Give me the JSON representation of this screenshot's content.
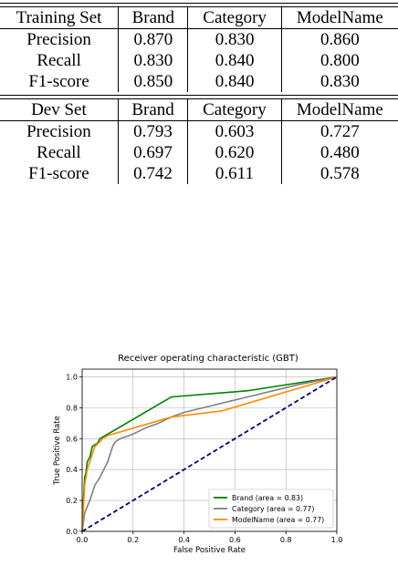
{
  "train_table": {
    "title": "Training Set",
    "columns": [
      "Brand",
      "Category",
      "ModelName"
    ],
    "rows": [
      {
        "label": "Precision",
        "values": [
          "0.870",
          "0.830",
          "0.860"
        ]
      },
      {
        "label": "Recall",
        "values": [
          "0.830",
          "0.840",
          "0.800"
        ]
      },
      {
        "label": "F1-score",
        "values": [
          "0.850",
          "0.840",
          "0.830"
        ]
      }
    ]
  },
  "dev_table": {
    "title": "Dev Set",
    "columns": [
      "Brand",
      "Category",
      "ModelName"
    ],
    "rows": [
      {
        "label": "Precision",
        "values": [
          "0.793",
          "0.603",
          "0.727"
        ]
      },
      {
        "label": "Recall",
        "values": [
          "0.697",
          "0.620",
          "0.480"
        ]
      },
      {
        "label": "F1-score",
        "values": [
          "0.742",
          "0.611",
          "0.578"
        ]
      }
    ]
  },
  "chart_data": {
    "type": "line",
    "title": "Receiver operating characteristic (GBT)",
    "xlabel": "False Positive Rate",
    "ylabel": "True Positive Rate",
    "xlim": [
      0.0,
      1.0
    ],
    "ylim": [
      0.0,
      1.05
    ],
    "xticks": [
      "0.0",
      "0.2",
      "0.4",
      "0.6",
      "0.8",
      "1.0"
    ],
    "yticks": [
      "0.0",
      "0.2",
      "0.4",
      "0.6",
      "0.8",
      "1.0"
    ],
    "grid": true,
    "legend_position": "lower-right",
    "series": [
      {
        "name": "Brand (area = 0.83)",
        "color": "#008000",
        "x": [
          0.0,
          0.005,
          0.01,
          0.015,
          0.02,
          0.03,
          0.04,
          0.05,
          0.06,
          0.07,
          0.35,
          0.65,
          1.0
        ],
        "y": [
          0.0,
          0.2,
          0.35,
          0.38,
          0.45,
          0.48,
          0.55,
          0.56,
          0.57,
          0.6,
          0.87,
          0.91,
          1.0
        ]
      },
      {
        "name": "Category (area = 0.77)",
        "color": "#808080",
        "x": [
          0.0,
          0.01,
          0.03,
          0.05,
          0.07,
          0.1,
          0.12,
          0.13,
          0.15,
          0.2,
          0.25,
          0.3,
          0.35,
          0.4,
          0.6,
          0.85,
          1.0
        ],
        "y": [
          0.0,
          0.12,
          0.2,
          0.3,
          0.35,
          0.45,
          0.55,
          0.58,
          0.6,
          0.63,
          0.67,
          0.7,
          0.74,
          0.77,
          0.85,
          0.95,
          1.0
        ]
      },
      {
        "name": "ModelName (area = 0.77)",
        "color": "#FF8C00",
        "x": [
          0.0,
          0.005,
          0.01,
          0.02,
          0.03,
          0.04,
          0.05,
          0.07,
          0.08,
          0.1,
          0.35,
          0.55,
          1.0
        ],
        "y": [
          0.0,
          0.15,
          0.3,
          0.4,
          0.45,
          0.5,
          0.55,
          0.58,
          0.6,
          0.62,
          0.74,
          0.78,
          1.0
        ]
      },
      {
        "name": "",
        "color": "#000080",
        "style": "dashed",
        "x": [
          0.0,
          1.0
        ],
        "y": [
          0.0,
          1.0
        ]
      }
    ]
  }
}
